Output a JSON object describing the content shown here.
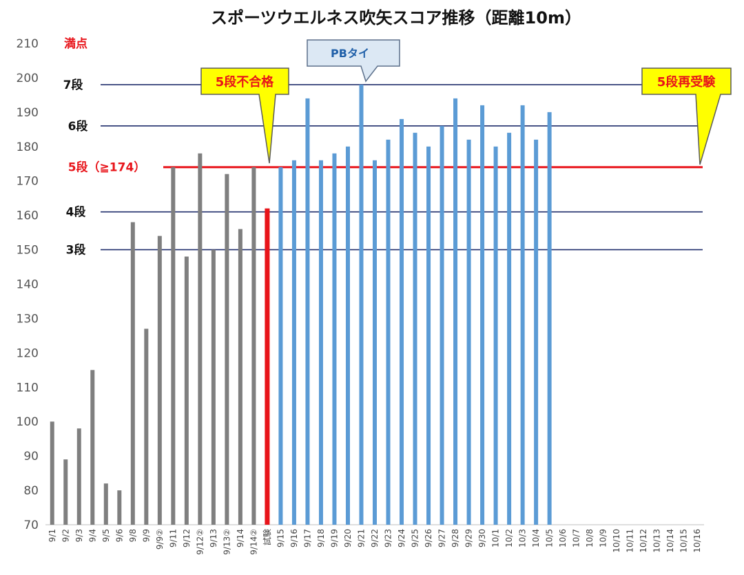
{
  "chart_data": {
    "type": "bar",
    "title": "スポーツウエルネス吹矢スコア推移（距離10m）",
    "xlabel": "",
    "ylabel": "",
    "ylim": [
      70,
      210
    ],
    "yticks": [
      70,
      80,
      90,
      100,
      110,
      120,
      130,
      140,
      150,
      160,
      170,
      180,
      190,
      200,
      210
    ],
    "grid": false,
    "categories": [
      "9/1",
      "9/2",
      "9/3",
      "9/4",
      "9/5",
      "9/6",
      "9/8",
      "9/9",
      "9/9②",
      "9/11",
      "9/12",
      "9/12②",
      "9/13",
      "9/13②",
      "9/14",
      "9/14②",
      "試験",
      "9/15",
      "9/16",
      "9/17",
      "9/18",
      "9/19",
      "9/20",
      "9/21",
      "9/22",
      "9/23",
      "9/24",
      "9/25",
      "9/26",
      "9/27",
      "9/28",
      "9/29",
      "9/30",
      "10/1",
      "10/2",
      "10/3",
      "10/4",
      "10/5",
      "10/6",
      "10/7",
      "10/8",
      "10/9",
      "10/10",
      "10/11",
      "10/12",
      "10/13",
      "10/14",
      "10/15",
      "10/16"
    ],
    "values": [
      100,
      89,
      98,
      115,
      82,
      80,
      158,
      127,
      154,
      174,
      148,
      178,
      150,
      172,
      156,
      174,
      162,
      174,
      176,
      194,
      176,
      178,
      180,
      198,
      176,
      182,
      188,
      184,
      180,
      186,
      194,
      182,
      192,
      180,
      184,
      192,
      182,
      190,
      null,
      null,
      null,
      null,
      null,
      null,
      null,
      null,
      null,
      null,
      null
    ],
    "bar_groups": [
      {
        "from": 0,
        "to": 15,
        "color": "#7f7f7f"
      },
      {
        "from": 16,
        "to": 16,
        "color": "#e8141a"
      },
      {
        "from": 17,
        "to": 48,
        "color": "#5b9bd5"
      }
    ],
    "reference_lines": [
      {
        "label": "満点",
        "value": 210,
        "color": "#e8141a",
        "line": false
      },
      {
        "label": "7段",
        "value": 198,
        "color": "#1f2d6b",
        "line": true
      },
      {
        "label": "6段",
        "value": 186,
        "color": "#1f2d6b",
        "line": true
      },
      {
        "label": "5段（≧174）",
        "value": 174,
        "color": "#e8141a",
        "line": true
      },
      {
        "label": "4段",
        "value": 161,
        "color": "#1f2d6b",
        "line": true
      },
      {
        "label": "3段",
        "value": 150,
        "color": "#1f2d6b",
        "line": true
      }
    ],
    "annotations": [
      {
        "text": "5段不合格",
        "style": "yellow"
      },
      {
        "text": "PBタイ",
        "style": "blue"
      },
      {
        "text": "5段再受験",
        "style": "yellow"
      }
    ]
  }
}
